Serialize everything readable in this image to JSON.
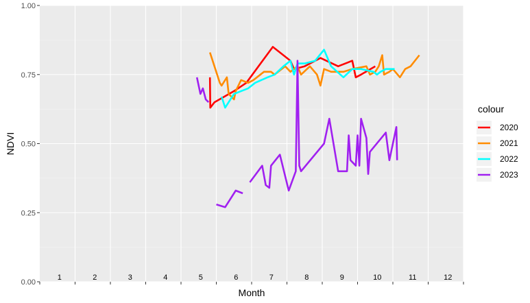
{
  "chart_data": {
    "type": "line",
    "xlabel": "Month",
    "ylabel": "NDVI",
    "xlim": [
      0.5,
      12.5
    ],
    "ylim": [
      0,
      1
    ],
    "y_ticks": [
      "0.00",
      "0.25",
      "0.50",
      "0.75",
      "1.00"
    ],
    "y_tick_values": [
      0,
      0.25,
      0.5,
      0.75,
      1.0
    ],
    "x_month_labels": [
      "1",
      "2",
      "3",
      "4",
      "5",
      "6",
      "7",
      "8",
      "9",
      "10",
      "11",
      "12"
    ],
    "grid": true,
    "panel_background": "#ebebeb",
    "legend": {
      "title": "colour",
      "position": "right"
    },
    "series": [
      {
        "name": "2020",
        "color": "#ff0000",
        "points": [
          [
            5.32,
            0.74
          ],
          [
            5.33,
            0.63
          ],
          [
            5.45,
            0.65
          ],
          [
            6.0,
            0.69
          ],
          [
            6.35,
            0.72
          ],
          [
            7.1,
            0.85
          ],
          [
            7.6,
            0.8
          ],
          [
            7.7,
            0.77
          ],
          [
            8.0,
            0.78
          ],
          [
            8.45,
            0.81
          ],
          [
            8.95,
            0.78
          ],
          [
            9.35,
            0.8
          ],
          [
            9.45,
            0.74
          ],
          [
            9.6,
            0.75
          ],
          [
            10.0,
            0.78
          ]
        ]
      },
      {
        "name": "2021",
        "color": "#ff8c00",
        "points": [
          [
            5.32,
            0.83
          ],
          [
            5.6,
            0.72
          ],
          [
            5.65,
            0.71
          ],
          [
            5.8,
            0.74
          ],
          [
            5.85,
            0.68
          ],
          [
            6.0,
            0.66
          ],
          [
            6.05,
            0.69
          ],
          [
            6.2,
            0.73
          ],
          [
            6.4,
            0.72
          ],
          [
            6.55,
            0.73
          ],
          [
            6.85,
            0.76
          ],
          [
            7.05,
            0.76
          ],
          [
            7.15,
            0.75
          ],
          [
            7.45,
            0.78
          ],
          [
            7.6,
            0.76
          ],
          [
            7.8,
            0.78
          ],
          [
            7.9,
            0.75
          ],
          [
            8.15,
            0.78
          ],
          [
            8.35,
            0.75
          ],
          [
            8.45,
            0.71
          ],
          [
            8.55,
            0.77
          ],
          [
            8.75,
            0.76
          ],
          [
            9.1,
            0.76
          ],
          [
            9.35,
            0.77
          ],
          [
            9.75,
            0.78
          ],
          [
            9.85,
            0.75
          ],
          [
            10.0,
            0.76
          ],
          [
            10.1,
            0.78
          ],
          [
            10.2,
            0.82
          ],
          [
            10.25,
            0.75
          ],
          [
            10.4,
            0.76
          ],
          [
            10.5,
            0.77
          ],
          [
            10.7,
            0.74
          ],
          [
            10.85,
            0.77
          ],
          [
            11.0,
            0.78
          ],
          [
            11.25,
            0.82
          ]
        ]
      },
      {
        "name": "2022",
        "color": "#00ffff",
        "points": [
          [
            5.65,
            0.67
          ],
          [
            5.75,
            0.63
          ],
          [
            5.85,
            0.65
          ],
          [
            6.0,
            0.68
          ],
          [
            6.2,
            0.69
          ],
          [
            6.4,
            0.7
          ],
          [
            6.6,
            0.72
          ],
          [
            6.95,
            0.74
          ],
          [
            7.15,
            0.75
          ],
          [
            7.4,
            0.78
          ],
          [
            7.6,
            0.8
          ],
          [
            7.7,
            0.75
          ],
          [
            7.8,
            0.79
          ],
          [
            8.0,
            0.79
          ],
          [
            8.3,
            0.8
          ],
          [
            8.55,
            0.84
          ],
          [
            8.75,
            0.78
          ],
          [
            9.1,
            0.74
          ],
          [
            9.35,
            0.77
          ],
          [
            9.6,
            0.77
          ],
          [
            9.95,
            0.76
          ],
          [
            10.05,
            0.75
          ],
          [
            10.15,
            0.76
          ],
          [
            10.3,
            0.77
          ],
          [
            10.55,
            0.77
          ]
        ]
      },
      {
        "name": "2023",
        "segments": [
          [
            [
              4.95,
              0.74
            ],
            [
              5.05,
              0.68
            ],
            [
              5.12,
              0.7
            ],
            [
              5.2,
              0.66
            ],
            [
              5.28,
              0.65
            ]
          ],
          [
            [
              5.5,
              0.28
            ],
            [
              5.75,
              0.27
            ],
            [
              6.05,
              0.33
            ],
            [
              6.25,
              0.32
            ]
          ],
          [
            [
              6.45,
              0.36
            ],
            [
              6.8,
              0.42
            ],
            [
              6.9,
              0.35
            ],
            [
              7.0,
              0.34
            ],
            [
              7.05,
              0.42
            ],
            [
              7.3,
              0.46
            ],
            [
              7.55,
              0.33
            ],
            [
              7.75,
              0.4
            ],
            [
              7.8,
              0.8
            ],
            [
              7.85,
              0.42
            ],
            [
              7.9,
              0.4
            ],
            [
              8.55,
              0.5
            ],
            [
              8.7,
              0.59
            ],
            [
              8.95,
              0.4
            ],
            [
              9.2,
              0.4
            ],
            [
              9.25,
              0.53
            ],
            [
              9.3,
              0.44
            ],
            [
              9.45,
              0.42
            ],
            [
              9.5,
              0.53
            ],
            [
              9.55,
              0.42
            ],
            [
              9.6,
              0.59
            ],
            [
              9.75,
              0.52
            ],
            [
              9.8,
              0.39
            ],
            [
              9.85,
              0.47
            ],
            [
              10.3,
              0.54
            ],
            [
              10.4,
              0.44
            ],
            [
              10.6,
              0.56
            ],
            [
              10.62,
              0.44
            ]
          ]
        ],
        "color": "#a020f0"
      }
    ]
  }
}
